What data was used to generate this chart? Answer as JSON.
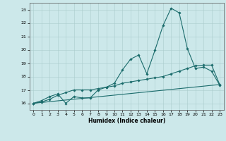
{
  "title": "",
  "xlabel": "Humidex (Indice chaleur)",
  "ylabel": "",
  "background_color": "#cce8ea",
  "line_color": "#1a6b6b",
  "xlim": [
    -0.5,
    23.5
  ],
  "ylim": [
    15.5,
    23.5
  ],
  "yticks": [
    16,
    17,
    18,
    19,
    20,
    21,
    22,
    23
  ],
  "xticks": [
    0,
    1,
    2,
    3,
    4,
    5,
    6,
    7,
    8,
    9,
    10,
    11,
    12,
    13,
    14,
    15,
    16,
    17,
    18,
    19,
    20,
    21,
    22,
    23
  ],
  "line1_x": [
    0,
    1,
    2,
    3,
    4,
    5,
    6,
    7,
    8,
    9,
    10,
    11,
    12,
    13,
    14,
    15,
    16,
    17,
    18,
    19,
    20,
    21,
    22,
    23
  ],
  "line1_y": [
    16.0,
    16.2,
    16.5,
    16.7,
    16.0,
    16.5,
    16.4,
    16.4,
    17.0,
    17.2,
    17.5,
    18.5,
    19.3,
    19.6,
    18.2,
    19.95,
    21.8,
    23.1,
    22.75,
    20.1,
    18.6,
    18.7,
    18.4,
    17.35
  ],
  "line2_x": [
    0,
    1,
    2,
    3,
    4,
    5,
    6,
    7,
    8,
    9,
    10,
    11,
    12,
    13,
    14,
    15,
    16,
    17,
    18,
    19,
    20,
    21,
    22,
    23
  ],
  "line2_y": [
    16.0,
    16.1,
    16.3,
    16.6,
    16.8,
    17.0,
    17.0,
    17.0,
    17.1,
    17.2,
    17.3,
    17.5,
    17.6,
    17.7,
    17.8,
    17.9,
    18.0,
    18.2,
    18.4,
    18.6,
    18.8,
    18.85,
    18.85,
    17.4
  ],
  "line3_x": [
    0,
    23
  ],
  "line3_y": [
    16.0,
    17.4
  ]
}
